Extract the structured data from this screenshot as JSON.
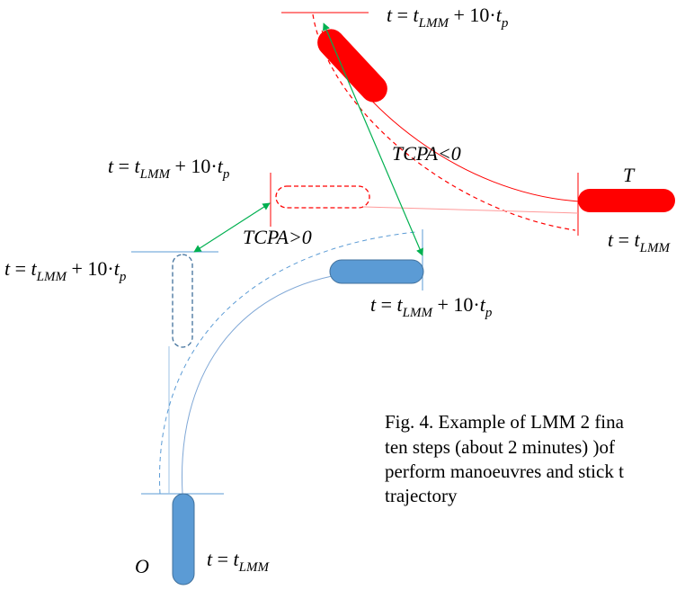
{
  "equation": {
    "lhs": "t",
    "eq": " = ",
    "base": "t",
    "base_sub": "LMM",
    "plus": " + 10·",
    "tp": "t",
    "tp_sub": "p"
  },
  "labels": {
    "target": "T",
    "own": "O",
    "tcpa_neg": "TCPA<0",
    "tcpa_pos": "TCPA>0"
  },
  "caption": {
    "line1": "Fig. 4. Example of LMM 2 fina",
    "line2": "ten steps (about 2 minutes) )of",
    "line3": "perform manoeuvres and stick t",
    "line4": "trajectory"
  },
  "colors": {
    "target": "#ff0000",
    "own_fill": "#5b9bd5",
    "own_stroke": "#41719c",
    "own_line": "#8fb4dd",
    "cpa": "#00b050"
  }
}
